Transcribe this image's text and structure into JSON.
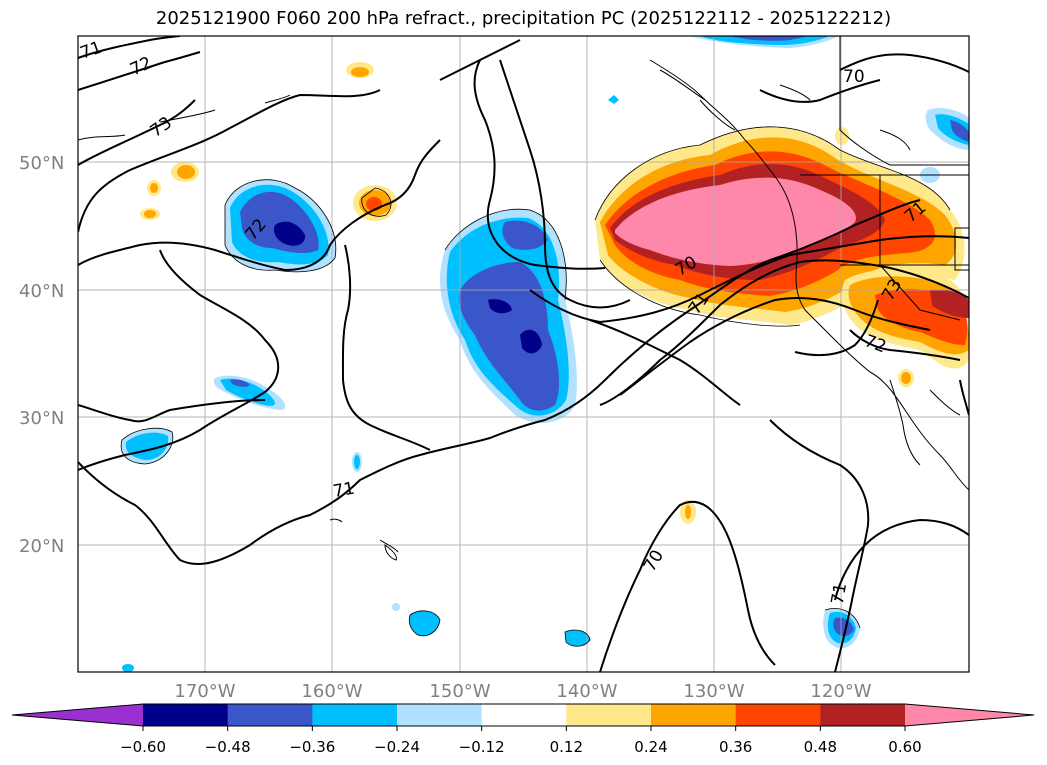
{
  "title": "2025121900 F060 200 hPa refract., precipitation PC (2025122112 - 2025122212)",
  "lat_labels": [
    "50°N",
    "40°N",
    "30°N",
    "20°N"
  ],
  "lon_labels": [
    "170°W",
    "160°W",
    "150°W",
    "140°W",
    "130°W",
    "120°W"
  ],
  "colorbar": {
    "ticks": [
      "−0.60",
      "−0.48",
      "−0.36",
      "−0.24",
      "−0.12",
      "0.12",
      "0.24",
      "0.36",
      "0.48",
      "0.60"
    ],
    "colors": [
      "#9b30d0",
      "#00008b",
      "#3a56c8",
      "#00bfff",
      "#b0e2ff",
      "#ffffff",
      "#ffe88a",
      "#ffa500",
      "#ff4500",
      "#b22222",
      "#ff88aa"
    ]
  },
  "contour_labels": [
    "71",
    "72",
    "73",
    "70",
    "72",
    "71",
    "70",
    "71",
    "73",
    "72",
    "71",
    "70",
    "71"
  ],
  "colors": {
    "pink": "#ff88aa",
    "darkred": "#b22222",
    "orangered": "#ff4500",
    "orange": "#ffa500",
    "yellow": "#ffe88a",
    "lightblue": "#b0e2ff",
    "skyblue": "#00bfff",
    "royalblue": "#3a56c8",
    "navy": "#00008b"
  }
}
